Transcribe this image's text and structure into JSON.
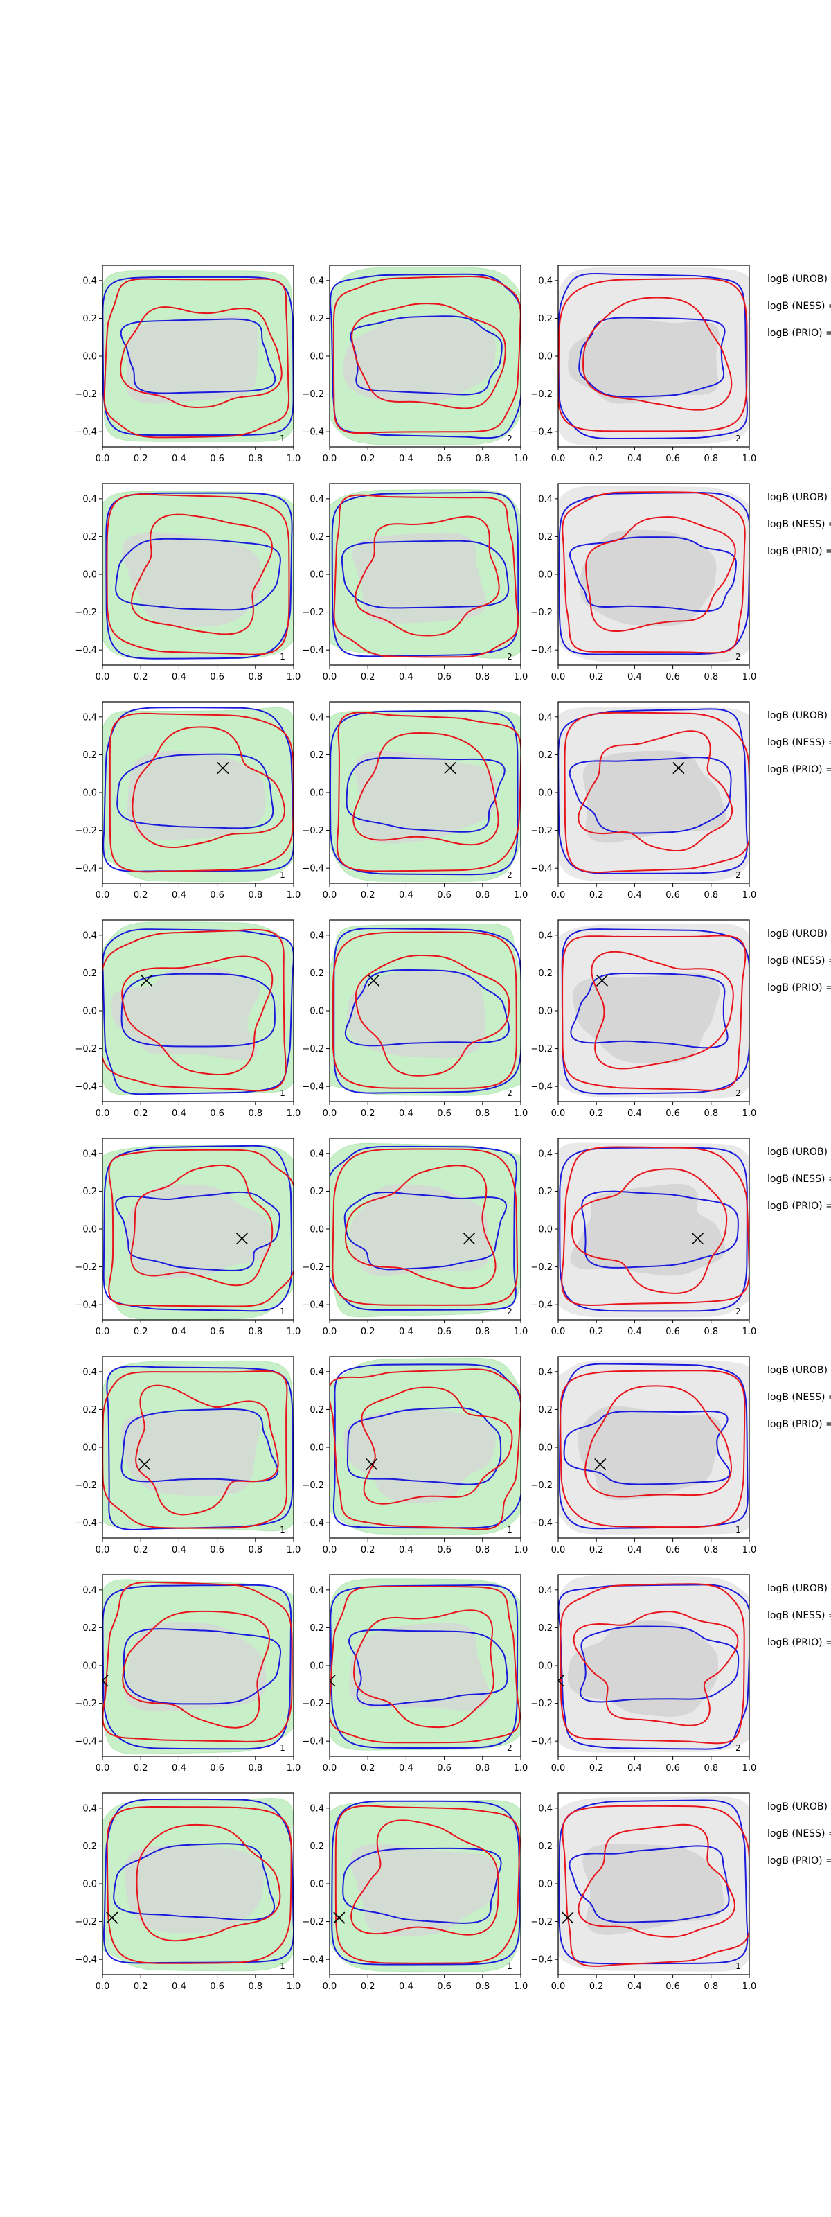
{
  "figure": {
    "type": "contour-grid",
    "rows": 8,
    "cols": 3
  },
  "axes": {
    "xlim": [
      0.0,
      1.0
    ],
    "ylim": [
      -0.48,
      0.48
    ],
    "xticks": [
      0.0,
      0.2,
      0.4,
      0.6,
      0.8,
      1.0
    ],
    "xtick_labels": [
      "0.0",
      "0.2",
      "0.4",
      "0.6",
      "0.8",
      "1.0"
    ],
    "yticks": [
      0.4,
      0.2,
      0.0,
      -0.2,
      -0.4
    ],
    "ytick_labels": [
      "0.4",
      "0.2",
      "0.0",
      "−0.2",
      "−0.4"
    ]
  },
  "colors": {
    "fill_green": "#c8f0c8",
    "fill_green_edge": "#b6e8b6",
    "fill_light_gray": "#e9e9e9",
    "fill_gray": "#d6d6d6",
    "contour_red": "#e8141c",
    "contour_blue": "#1a1adc",
    "frame": "#000000"
  },
  "side_labels": [
    "logB (UROB) =",
    "logB (NESS) =",
    "logB (PRIO) ="
  ],
  "chart_data": [
    {
      "type": "contour",
      "row": 1,
      "marker": null,
      "corner_labels": [
        "1",
        "2",
        "2"
      ]
    },
    {
      "type": "contour",
      "row": 2,
      "marker": null,
      "corner_labels": [
        "1",
        "2",
        "2"
      ]
    },
    {
      "type": "contour",
      "row": 3,
      "marker": [
        0.63,
        0.13
      ],
      "corner_labels": [
        "1",
        "2",
        "2"
      ]
    },
    {
      "type": "contour",
      "row": 4,
      "marker": [
        0.23,
        0.16
      ],
      "corner_labels": [
        "1",
        "2",
        "2"
      ]
    },
    {
      "type": "contour",
      "row": 5,
      "marker": [
        0.73,
        -0.05
      ],
      "corner_labels": [
        "1",
        "2",
        "2"
      ]
    },
    {
      "type": "contour",
      "row": 6,
      "marker": [
        0.22,
        -0.09
      ],
      "corner_labels": [
        "1",
        "1",
        "1"
      ]
    },
    {
      "type": "contour",
      "row": 7,
      "marker": [
        0.0,
        -0.08
      ],
      "corner_labels": [
        "1",
        "2",
        "2"
      ]
    },
    {
      "type": "contour",
      "row": 8,
      "marker": [
        0.05,
        -0.18
      ],
      "corner_labels": [
        "1",
        "1",
        "1"
      ]
    }
  ]
}
